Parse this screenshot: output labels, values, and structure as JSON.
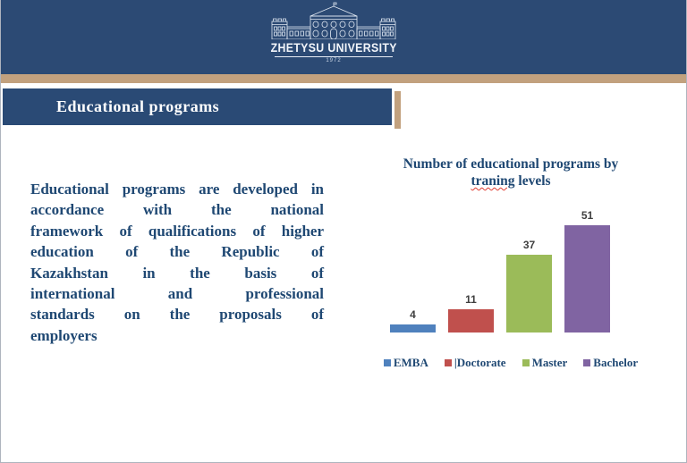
{
  "header": {
    "university_name": "ZHETYSU UNIVERSITY",
    "founded_year": "1972",
    "logo_icon": "university-building-line-art"
  },
  "title_bar": {
    "title": "Educational programs"
  },
  "body": {
    "paragraph": "Educational programs are developed in accordance with the national framework of qualifications of higher education of the Republic of Kazakhstan in the basis of international and professional standards on the proposals of employers",
    "paragraph_lines": [
      "Educational programs are developed in",
      "accordance with the national",
      "framework of qualifications of higher",
      "education of the Republic of",
      "Kazakhstan in the basis of",
      "international and professional",
      "standards on the proposals of",
      "employers"
    ]
  },
  "chart_data": {
    "type": "bar",
    "title": "Number of educational programs by traning levels",
    "title_line1": "Number of educational programs by",
    "title_line2_misspelled": "traning",
    "title_line2_rest": " levels",
    "categories": [
      "EMBA",
      "|Doctorate",
      "Master",
      "Bachelor"
    ],
    "values": [
      4,
      11,
      37,
      51
    ],
    "bar_colors": [
      "#4F81BD",
      "#C0504D",
      "#9BBB59",
      "#8064A2"
    ],
    "value_label_color": "#3F3F3F",
    "ylim": [
      0,
      51
    ],
    "grid": false,
    "axes_visible": false,
    "legend_position": "bottom"
  },
  "colors": {
    "header_navy": "#2C4A74",
    "title_bar_navy": "#2A4A75",
    "tan_accent": "#C2A17E",
    "text_navy": "#1F4873",
    "slide_border": "#AEB4BE"
  }
}
